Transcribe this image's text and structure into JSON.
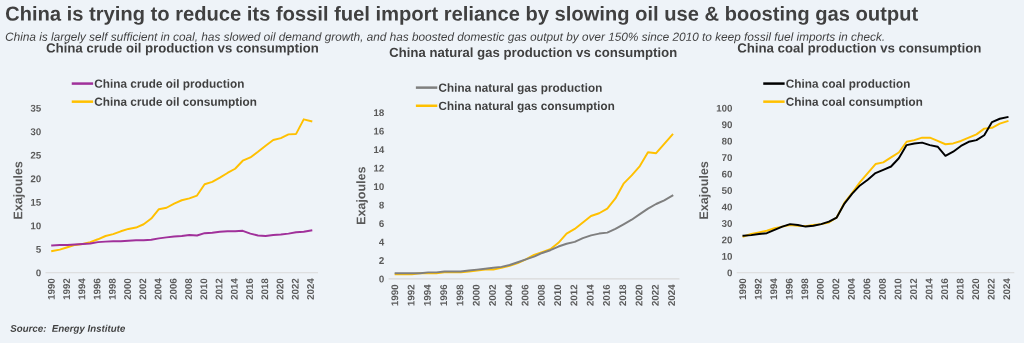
{
  "chart_data": [
    {
      "type": "other",
      "title": "China is trying to reduce its fossil fuel import reliance by slowing oil use & boosting gas output",
      "subtitle": "China is largely self sufficient in coal, has slowed oil demand growth, and has boosted domestic gas output by over 150% since 2010 to keep fossil fuel imports in check.",
      "annotations": [
        "Source:  Energy Institute"
      ]
    },
    {
      "type": "line",
      "title": "China crude oil production vs consumption",
      "ylabel": "Exajoules",
      "categories": [
        "1990",
        null,
        "1992",
        null,
        "1994",
        null,
        "1996",
        null,
        "1998",
        null,
        "2000",
        null,
        "2002",
        null,
        "2004",
        null,
        "2006",
        null,
        "2008",
        null,
        "2010",
        null,
        "2012",
        null,
        "2014",
        null,
        "2016",
        null,
        "2018",
        null,
        "2020",
        null,
        "2022",
        null,
        "2024"
      ],
      "series": [
        {
          "name": "China crude oil production",
          "color": "#a0309a",
          "values": [
            5.8,
            5.9,
            5.9,
            6.0,
            6.1,
            6.2,
            6.5,
            6.6,
            6.7,
            6.7,
            6.8,
            6.9,
            6.9,
            7.0,
            7.3,
            7.5,
            7.7,
            7.8,
            8.0,
            7.9,
            8.4,
            8.5,
            8.7,
            8.8,
            8.8,
            8.9,
            8.3,
            7.9,
            7.8,
            8.0,
            8.1,
            8.3,
            8.6,
            8.7,
            9.0
          ]
        },
        {
          "name": "China crude oil consumption",
          "color": "#ffc000",
          "values": [
            4.6,
            4.9,
            5.4,
            5.9,
            6.1,
            6.5,
            7.1,
            7.8,
            8.2,
            8.8,
            9.3,
            9.6,
            10.3,
            11.5,
            13.5,
            13.8,
            14.7,
            15.4,
            15.8,
            16.4,
            18.8,
            19.3,
            20.2,
            21.2,
            22.1,
            23.8,
            24.5,
            25.7,
            27.0,
            28.2,
            28.6,
            29.4,
            29.5,
            32.6,
            32.2
          ]
        }
      ],
      "ylim": [
        0,
        35
      ],
      "yticks": [
        0,
        5,
        10,
        15,
        20,
        25,
        30,
        35
      ],
      "grid": false,
      "legend": "top left"
    },
    {
      "type": "line",
      "title": "China natural gas production vs consumption",
      "ylabel": "Exajoules",
      "categories": [
        "1990",
        null,
        "1992",
        null,
        "1994",
        null,
        "1996",
        null,
        "1998",
        null,
        "2000",
        null,
        "2002",
        null,
        "2004",
        null,
        "2006",
        null,
        "2008",
        null,
        "2010",
        null,
        "2012",
        null,
        "2014",
        null,
        "2016",
        null,
        "2018",
        null,
        "2020",
        null,
        "2022",
        null,
        "2024"
      ],
      "series": [
        {
          "name": "China natural gas production",
          "color": "#7f7f7f",
          "values": [
            0.6,
            0.6,
            0.6,
            0.6,
            0.7,
            0.7,
            0.8,
            0.8,
            0.8,
            0.9,
            1.0,
            1.1,
            1.2,
            1.3,
            1.5,
            1.8,
            2.1,
            2.4,
            2.8,
            3.1,
            3.5,
            3.8,
            4.0,
            4.4,
            4.7,
            4.9,
            5.0,
            5.4,
            5.9,
            6.4,
            7.0,
            7.6,
            8.1,
            8.5,
            9.0
          ]
        },
        {
          "name": "China natural gas consumption",
          "color": "#ffc000",
          "values": [
            0.5,
            0.5,
            0.5,
            0.6,
            0.6,
            0.6,
            0.7,
            0.7,
            0.7,
            0.8,
            0.9,
            1.0,
            1.0,
            1.2,
            1.4,
            1.7,
            2.1,
            2.6,
            2.9,
            3.2,
            3.9,
            4.9,
            5.4,
            6.1,
            6.8,
            7.1,
            7.6,
            8.7,
            10.3,
            11.2,
            12.2,
            13.7,
            13.6,
            14.6,
            15.6
          ]
        }
      ],
      "ylim": [
        0,
        18
      ],
      "yticks": [
        0,
        2,
        4,
        6,
        8,
        10,
        12,
        14,
        16,
        18
      ],
      "grid": false,
      "legend": "top left"
    },
    {
      "type": "line",
      "title": "China coal production vs consumption",
      "ylabel": "Exajoules",
      "categories": [
        "1990",
        null,
        "1992",
        null,
        "1994",
        null,
        "1996",
        null,
        "1998",
        null,
        "2000",
        null,
        "2002",
        null,
        "2004",
        null,
        "2006",
        null,
        "2008",
        null,
        "2010",
        null,
        "2012",
        null,
        "2014",
        null,
        "2016",
        null,
        "2018",
        null,
        "2020",
        null,
        "2022",
        null,
        "2024"
      ],
      "series": [
        {
          "name": "China coal production",
          "color": "#000000",
          "values": [
            22.5,
            22.8,
            23.5,
            24.0,
            26.0,
            28.0,
            29.5,
            29.0,
            28.0,
            28.5,
            29.5,
            31.0,
            33.5,
            42.0,
            48.0,
            53.0,
            56.5,
            60.5,
            62.5,
            64.5,
            69.5,
            77.5,
            78.5,
            79.0,
            77.5,
            76.5,
            71.0,
            73.5,
            77.0,
            79.5,
            80.5,
            83.5,
            91.5,
            93.5,
            94.5
          ]
        },
        {
          "name": "China coal consumption",
          "color": "#ffc000",
          "values": [
            22.0,
            23.5,
            24.5,
            25.5,
            27.0,
            28.0,
            29.0,
            28.5,
            28.3,
            29.0,
            29.5,
            30.5,
            33.5,
            42.5,
            48.5,
            55.0,
            60.5,
            66.0,
            67.0,
            70.0,
            73.0,
            79.5,
            80.5,
            82.0,
            82.0,
            80.0,
            78.0,
            78.5,
            80.0,
            82.0,
            84.0,
            87.5,
            88.0,
            90.5,
            92.0
          ]
        }
      ],
      "ylim": [
        0,
        100
      ],
      "yticks": [
        0,
        10,
        20,
        30,
        40,
        50,
        60,
        70,
        80,
        90,
        100
      ],
      "grid": false,
      "legend": "top left"
    }
  ]
}
